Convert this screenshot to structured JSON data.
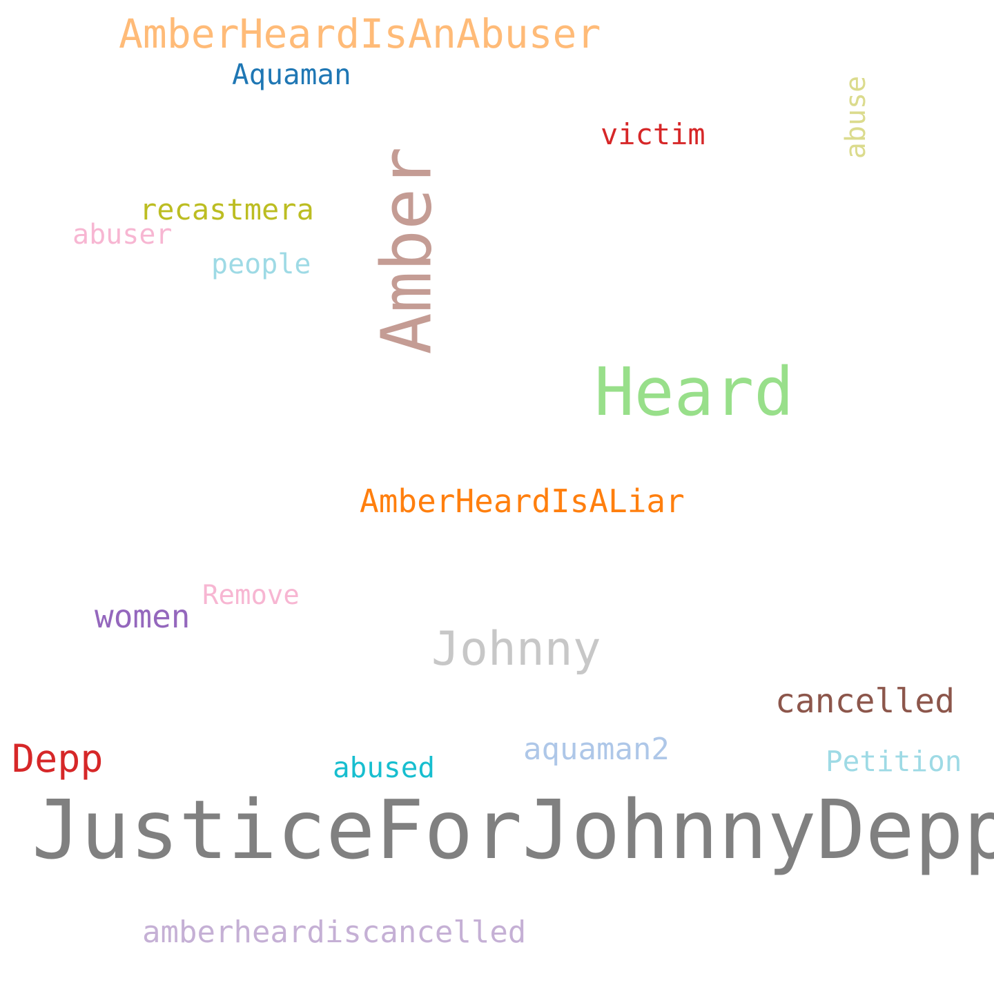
{
  "wordcloud": {
    "words": [
      {
        "text": "JusticeForJohnnyDepp",
        "color": "#808080",
        "orientation": "horizontal"
      },
      {
        "text": "Heard",
        "color": "#98df8a",
        "orientation": "horizontal"
      },
      {
        "text": "Amber",
        "color": "#c49c94",
        "orientation": "vertical"
      },
      {
        "text": "Johnny",
        "color": "#c7c7c7",
        "orientation": "horizontal"
      },
      {
        "text": "AmberHeardIsALiar",
        "color": "#ff7f0e",
        "orientation": "horizontal"
      },
      {
        "text": "AmberHeardIsAnAbuser",
        "color": "#ffbb78",
        "orientation": "horizontal"
      },
      {
        "text": "Depp",
        "color": "#d62728",
        "orientation": "horizontal"
      },
      {
        "text": "cancelled",
        "color": "#8c564b",
        "orientation": "horizontal"
      },
      {
        "text": "amberheardiscancelled",
        "color": "#c5b0d5",
        "orientation": "horizontal"
      },
      {
        "text": "aquaman2",
        "color": "#aec7e8",
        "orientation": "horizontal"
      },
      {
        "text": "women",
        "color": "#9467bd",
        "orientation": "horizontal"
      },
      {
        "text": "recastmera",
        "color": "#bcbd22",
        "orientation": "horizontal"
      },
      {
        "text": "victim",
        "color": "#d62728",
        "orientation": "horizontal"
      },
      {
        "text": "Aquaman",
        "color": "#1f77b4",
        "orientation": "horizontal"
      },
      {
        "text": "abused",
        "color": "#17becf",
        "orientation": "horizontal"
      },
      {
        "text": "Petition",
        "color": "#9edae5",
        "orientation": "horizontal"
      },
      {
        "text": "people",
        "color": "#9edae5",
        "orientation": "horizontal"
      },
      {
        "text": "abuser",
        "color": "#f7b6d2",
        "orientation": "horizontal"
      },
      {
        "text": "Remove",
        "color": "#f7b6d2",
        "orientation": "horizontal"
      },
      {
        "text": "abuse",
        "color": "#dbdb8d",
        "orientation": "vertical"
      }
    ]
  }
}
